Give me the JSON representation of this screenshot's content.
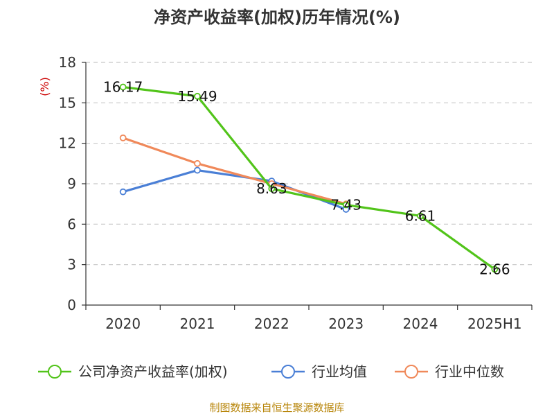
{
  "chart_data": {
    "type": "line",
    "title": "净资产收益率(加权)历年情况(%)",
    "ylabel": "(%)",
    "categories": [
      "2020",
      "2021",
      "2022",
      "2023",
      "2024",
      "2025H1"
    ],
    "ylim": [
      0,
      18
    ],
    "yticks": [
      0,
      3,
      6,
      9,
      12,
      15,
      18
    ],
    "grid": true,
    "legend_position": "bottom",
    "series": [
      {
        "name": "公司净资产收益率(加权)",
        "color": "#52c41a",
        "values": [
          16.17,
          15.49,
          8.63,
          7.43,
          6.61,
          2.66
        ],
        "labels": [
          "16.17",
          "15.49",
          "8.63",
          "7.43",
          "6.61",
          "2.66"
        ]
      },
      {
        "name": "行业均值",
        "color": "#4a7fd6",
        "values": [
          8.4,
          10.0,
          9.2,
          7.1,
          null,
          null
        ]
      },
      {
        "name": "行业中位数",
        "color": "#f0895a",
        "values": [
          12.4,
          10.5,
          9.0,
          7.5,
          null,
          null
        ]
      }
    ]
  },
  "source_text": "制图数据来自恒生聚源数据库"
}
